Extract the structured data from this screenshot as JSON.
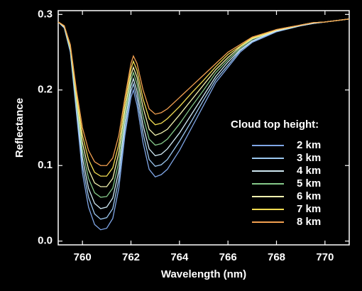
{
  "chart_data": {
    "type": "line",
    "x_label": "Wavelength (nm)",
    "y_label": "Reflectance",
    "legend_title": "Cloud top height:",
    "legend": "right",
    "xlim": [
      759,
      771
    ],
    "ylim": [
      -0.005,
      0.305
    ],
    "xticks": [
      760,
      762,
      764,
      766,
      768,
      770
    ],
    "yticks": [
      {
        "value": 0,
        "label": "0.0"
      },
      0.1,
      0.2,
      0.3
    ],
    "x": [
      759,
      759.25,
      759.5,
      759.75,
      760,
      760.25,
      760.5,
      760.75,
      761,
      761.25,
      761.5,
      761.75,
      762,
      762.1,
      762.25,
      762.5,
      762.75,
      763,
      763.25,
      763.5,
      764,
      764.5,
      765,
      765.5,
      766,
      766.5,
      767,
      767.5,
      768,
      768.5,
      769,
      769.5,
      770,
      770.5,
      771
    ],
    "series": [
      {
        "name": "2 km",
        "color": "#7fa6e6",
        "values": [
          0.29,
          0.282,
          0.25,
          0.17,
          0.09,
          0.045,
          0.022,
          0.015,
          0.017,
          0.03,
          0.07,
          0.14,
          0.19,
          0.2,
          0.18,
          0.13,
          0.095,
          0.085,
          0.088,
          0.095,
          0.12,
          0.15,
          0.18,
          0.21,
          0.23,
          0.25,
          0.263,
          0.27,
          0.277,
          0.281,
          0.285,
          0.288,
          0.29,
          0.292,
          0.294
        ]
      },
      {
        "name": "3 km",
        "color": "#9cc8f0",
        "values": [
          0.29,
          0.283,
          0.252,
          0.175,
          0.1,
          0.058,
          0.036,
          0.029,
          0.031,
          0.043,
          0.082,
          0.148,
          0.198,
          0.208,
          0.189,
          0.142,
          0.108,
          0.099,
          0.101,
          0.108,
          0.132,
          0.159,
          0.187,
          0.214,
          0.233,
          0.252,
          0.264,
          0.271,
          0.278,
          0.281,
          0.285,
          0.288,
          0.29,
          0.292,
          0.294
        ]
      },
      {
        "name": "4 km",
        "color": "#cfe8f2",
        "values": [
          0.29,
          0.283,
          0.253,
          0.18,
          0.11,
          0.07,
          0.05,
          0.043,
          0.045,
          0.057,
          0.093,
          0.157,
          0.205,
          0.215,
          0.198,
          0.153,
          0.122,
          0.113,
          0.115,
          0.122,
          0.143,
          0.168,
          0.193,
          0.218,
          0.237,
          0.253,
          0.265,
          0.272,
          0.278,
          0.282,
          0.285,
          0.288,
          0.29,
          0.292,
          0.294
        ]
      },
      {
        "name": "5 km",
        "color": "#86c98a",
        "values": [
          0.29,
          0.284,
          0.255,
          0.185,
          0.12,
          0.083,
          0.064,
          0.058,
          0.059,
          0.07,
          0.105,
          0.165,
          0.213,
          0.223,
          0.208,
          0.165,
          0.135,
          0.127,
          0.129,
          0.135,
          0.155,
          0.178,
          0.2,
          0.223,
          0.24,
          0.255,
          0.267,
          0.273,
          0.279,
          0.282,
          0.286,
          0.289,
          0.29,
          0.292,
          0.294
        ]
      },
      {
        "name": "6 km",
        "color": "#f4f4b0",
        "values": [
          0.29,
          0.284,
          0.257,
          0.19,
          0.13,
          0.095,
          0.077,
          0.072,
          0.072,
          0.083,
          0.117,
          0.173,
          0.22,
          0.23,
          0.217,
          0.177,
          0.148,
          0.14,
          0.143,
          0.148,
          0.167,
          0.187,
          0.207,
          0.227,
          0.243,
          0.257,
          0.268,
          0.273,
          0.279,
          0.282,
          0.286,
          0.289,
          0.29,
          0.292,
          0.294
        ]
      },
      {
        "name": "7 km",
        "color": "#f2dc52",
        "values": [
          0.29,
          0.285,
          0.258,
          0.195,
          0.14,
          0.108,
          0.091,
          0.086,
          0.086,
          0.097,
          0.128,
          0.182,
          0.228,
          0.238,
          0.226,
          0.188,
          0.162,
          0.154,
          0.156,
          0.162,
          0.178,
          0.196,
          0.213,
          0.231,
          0.247,
          0.258,
          0.269,
          0.274,
          0.28,
          0.283,
          0.286,
          0.289,
          0.29,
          0.292,
          0.294
        ]
      },
      {
        "name": "8 km",
        "color": "#f2a050",
        "values": [
          0.29,
          0.285,
          0.26,
          0.2,
          0.15,
          0.12,
          0.105,
          0.1,
          0.1,
          0.11,
          0.14,
          0.19,
          0.235,
          0.245,
          0.235,
          0.2,
          0.175,
          0.168,
          0.17,
          0.175,
          0.19,
          0.205,
          0.22,
          0.235,
          0.25,
          0.26,
          0.27,
          0.275,
          0.28,
          0.283,
          0.286,
          0.289,
          0.29,
          0.292,
          0.294
        ]
      }
    ]
  }
}
